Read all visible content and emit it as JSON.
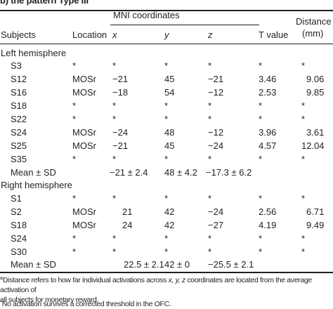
{
  "caption": "b) the pattern Type III",
  "header": {
    "mni_group": "MNI coordinates",
    "distance_line1": "Distance",
    "distance_line2": "(mm)",
    "subjects": "Subjects",
    "location": "Location",
    "x": "x",
    "y": "y",
    "z": "z",
    "t_value": "T value"
  },
  "left_hemisphere": {
    "label": "Left hemisphere",
    "rows": [
      {
        "subject": "S3",
        "location": "*",
        "x": "*",
        "y": "*",
        "z": "*",
        "t": "*",
        "dist": "*"
      },
      {
        "subject": "S12",
        "location": "MOSr",
        "x": "−21",
        "y": "45",
        "z": "−21",
        "t": "3.46",
        "dist": "9.06"
      },
      {
        "subject": "S16",
        "location": "MOSr",
        "x": "−18",
        "y": "54",
        "z": "−12",
        "t": "2.53",
        "dist": "9.85"
      },
      {
        "subject": "S18",
        "location": "*",
        "x": "*",
        "y": "*",
        "z": "*",
        "t": "*",
        "dist": "*"
      },
      {
        "subject": "S22",
        "location": "*",
        "x": "*",
        "y": "*",
        "z": "*",
        "t": "*",
        "dist": "*"
      },
      {
        "subject": "S24",
        "location": "MOSr",
        "x": "−24",
        "y": "48",
        "z": "−12",
        "t": "3.96",
        "dist": "3.61"
      },
      {
        "subject": "S25",
        "location": "MOSr",
        "x": "−21",
        "y": "45",
        "z": "−24",
        "t": "4.57",
        "dist": "12.04"
      },
      {
        "subject": "S35",
        "location": "*",
        "x": "*",
        "y": "*",
        "z": "*",
        "t": "*",
        "dist": "*"
      }
    ],
    "mean": {
      "label": "Mean ± SD",
      "x": "−21 ± 2.4",
      "y": "48 ± 4.2",
      "z": "−17.3 ± 6.2"
    }
  },
  "right_hemisphere": {
    "label": "Right hemisphere",
    "rows": [
      {
        "subject": "S1",
        "location": "*",
        "x": "*",
        "y": "*",
        "z": "*",
        "t": "*",
        "dist": "*"
      },
      {
        "subject": "S2",
        "location": "MOSr",
        "x": "21",
        "y": "42",
        "z": "−24",
        "t": "2.56",
        "dist": "6.71"
      },
      {
        "subject": "S18",
        "location": "MOSr",
        "x": "24",
        "y": "42",
        "z": "−27",
        "t": "4.19",
        "dist": "9.49"
      },
      {
        "subject": "S24",
        "location": "*",
        "x": "*",
        "y": "*",
        "z": "*",
        "t": "*",
        "dist": "*"
      },
      {
        "subject": "S30",
        "location": "*",
        "x": "*",
        "y": "*",
        "z": "*",
        "t": "*",
        "dist": "*"
      }
    ],
    "mean": {
      "label": "Mean ± SD",
      "x": "22.5 ± 2.1",
      "y": "42 ± 0",
      "z": "−25.5 ± 2.1"
    }
  },
  "footnotes": {
    "a_mark": "a",
    "a_text_1": "Distance refers to how far individual activations across ",
    "a_xyz": "x, y, z",
    "a_text_2": " coordinates are located from the average activation of",
    "a_text_3": "all subjects for monetary reward.",
    "b_mark": "*",
    "b_text": "No activation survives a corrected threshold in the OFC."
  }
}
